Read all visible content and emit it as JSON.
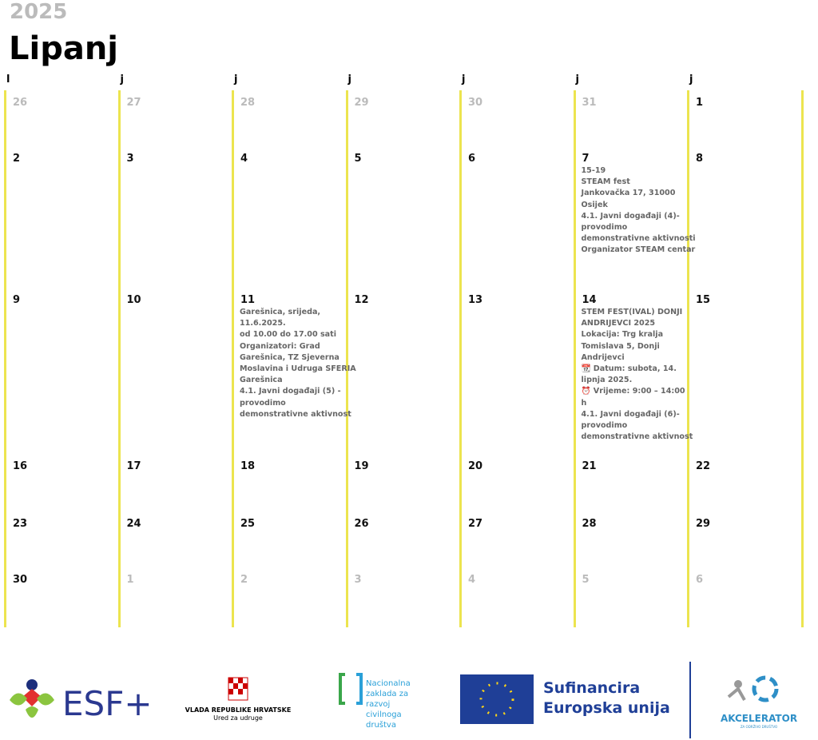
{
  "header": {
    "year": "2025",
    "month": "Lipanj"
  },
  "weekdays": [
    "l",
    "j",
    "j",
    "j",
    "j",
    "j",
    "j"
  ],
  "weeks": [
    [
      {
        "day": 26,
        "muted": true
      },
      {
        "day": 27,
        "muted": true
      },
      {
        "day": 28,
        "muted": true
      },
      {
        "day": 29,
        "muted": true
      },
      {
        "day": 30,
        "muted": true
      },
      {
        "day": 31,
        "muted": true
      },
      {
        "day": 1
      }
    ],
    [
      {
        "day": 2
      },
      {
        "day": 3
      },
      {
        "day": 4
      },
      {
        "day": 5
      },
      {
        "day": 6
      },
      {
        "day": 7,
        "event": [
          "15-19",
          "STEAM fest",
          "Jankovačka 17, 31000",
          "Osijek",
          "4.1. Javni događaji (4)-",
          "provodimo",
          "demonstrativne aktivnosti",
          "Organizator STEAM centar"
        ]
      },
      {
        "day": 8
      }
    ],
    [
      {
        "day": 9
      },
      {
        "day": 10
      },
      {
        "day": 11,
        "event": [
          "Garešnica, srijeda,",
          "11.6.2025.",
          "od 10.00 do 17.00 sati",
          "Organizatori: Grad",
          "Garešnica, TZ Sjeverna",
          "Moslavina i Udruga SFERIA",
          "Garešnica",
          "4.1. Javni događaji (5) -",
          "provodimo",
          "demonstrativne aktivnost"
        ]
      },
      {
        "day": 12
      },
      {
        "day": 13
      },
      {
        "day": 14,
        "event": [
          "STEM FEST(IVAL) DONJI",
          "ANDRIJEVCI 2025",
          "Lokacija: Trg kralja",
          "Tomislava 5, Donji",
          "Andrijevci",
          "📆 Datum: subota, 14.",
          "lipnja 2025.",
          "⏰ Vrijeme: 9:00 – 14:00",
          "h",
          "4.1. Javni događaji (6)-",
          "provodimo",
          "demonstrativne aktivnost"
        ]
      },
      {
        "day": 15
      }
    ],
    [
      {
        "day": 16
      },
      {
        "day": 17
      },
      {
        "day": 18
      },
      {
        "day": 19
      },
      {
        "day": 20
      },
      {
        "day": 21
      },
      {
        "day": 22
      }
    ],
    [
      {
        "day": 23
      },
      {
        "day": 24
      },
      {
        "day": 25
      },
      {
        "day": 26
      },
      {
        "day": 27
      },
      {
        "day": 28
      },
      {
        "day": 29
      }
    ],
    [
      {
        "day": 30
      },
      {
        "day": 1,
        "muted": true
      },
      {
        "day": 2,
        "muted": true
      },
      {
        "day": 3,
        "muted": true
      },
      {
        "day": 4,
        "muted": true
      },
      {
        "day": 5,
        "muted": true
      },
      {
        "day": 6,
        "muted": true
      }
    ]
  ],
  "footer": {
    "esf": "ESF+",
    "gov": [
      "VLADA REPUBLIKE HRVATSKE",
      "Ured za udruge"
    ],
    "nzcd": [
      "Nacionalna",
      "zaklada za",
      "razvoj",
      "civilnoga",
      "društva"
    ],
    "eu": [
      "Sufinancira",
      "Europska unija"
    ],
    "akc": [
      "AKCELERATOR",
      "ZA ODRŽIVO DRUŠTVO"
    ]
  }
}
